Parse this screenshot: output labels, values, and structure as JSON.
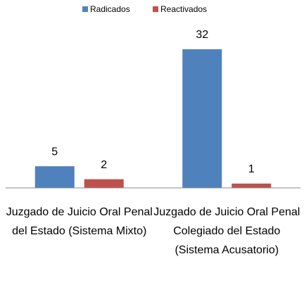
{
  "chart_data": {
    "type": "bar",
    "categories": [
      "Juzgado de Juicio Oral Penal del Estado (Sistema Mixto)",
      "Juzgado  de Juicio Oral Penal Colegiado del Estado (Sistema Acusatorio)"
    ],
    "series": [
      {
        "name": "Radicados",
        "color": "#4f81bd",
        "values": [
          5,
          32
        ]
      },
      {
        "name": "Reactivados",
        "color": "#c0504d",
        "values": [
          2,
          1
        ]
      }
    ],
    "legend": "top"
  }
}
